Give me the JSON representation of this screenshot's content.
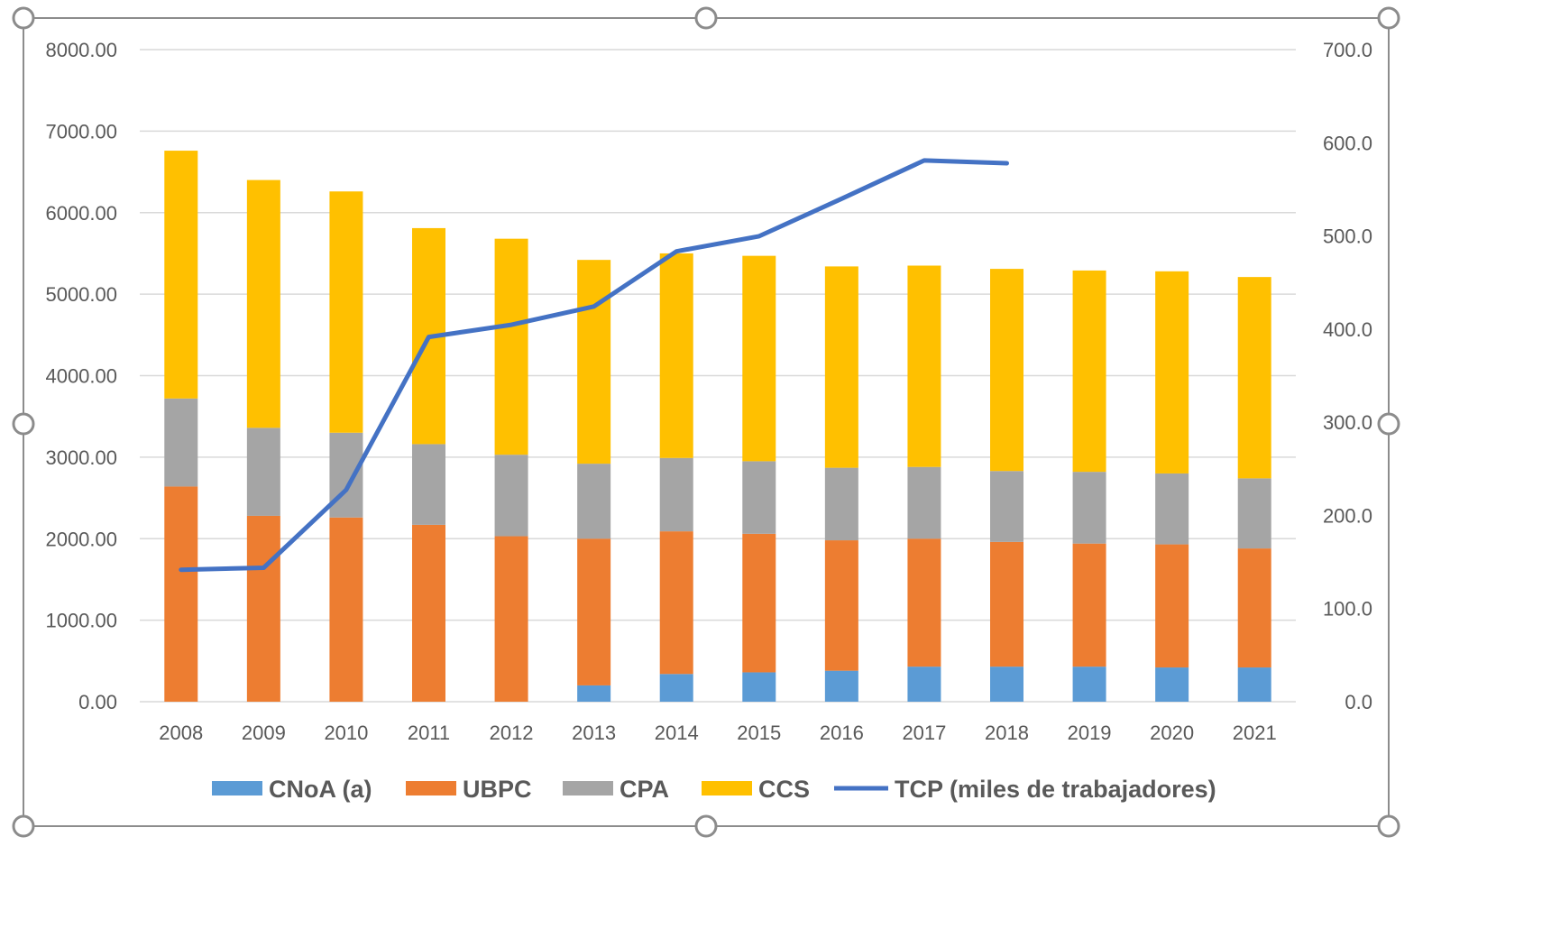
{
  "colors": {
    "CNoA": "#5B9BD5",
    "UBPC": "#ED7D31",
    "CPA": "#A5A5A5",
    "CCS": "#FFC000",
    "TCP": "#4472C4",
    "grid": "#D9D9D9",
    "axis_text": "#595959",
    "frame": "#8C8C8C"
  },
  "chart_data": {
    "type": "bar",
    "stacked": true,
    "categories": [
      "2008",
      "2009",
      "2010",
      "2011",
      "2012",
      "2013",
      "2014",
      "2015",
      "2016",
      "2017",
      "2018",
      "2019",
      "2020",
      "2021"
    ],
    "series": [
      {
        "name": "CNoA (a)",
        "type": "bar",
        "axis": "left",
        "values": [
          0,
          0,
          0,
          0,
          0,
          200,
          340,
          360,
          380,
          430,
          430,
          430,
          420,
          420
        ]
      },
      {
        "name": "UBPC",
        "type": "bar",
        "axis": "left",
        "values": [
          2640,
          2280,
          2260,
          2170,
          2030,
          1800,
          1750,
          1700,
          1600,
          1570,
          1530,
          1510,
          1510,
          1460
        ]
      },
      {
        "name": "CPA",
        "type": "bar",
        "axis": "left",
        "values": [
          1080,
          1080,
          1040,
          990,
          1000,
          920,
          900,
          890,
          890,
          880,
          870,
          880,
          870,
          860
        ]
      },
      {
        "name": "CCS",
        "type": "bar",
        "axis": "left",
        "values": [
          3040,
          3040,
          2960,
          2650,
          2650,
          2500,
          2510,
          2520,
          2470,
          2470,
          2480,
          2470,
          2480,
          2470
        ]
      },
      {
        "name": "TCP (miles de trabajadores)",
        "type": "line",
        "axis": "right",
        "values": [
          141.6,
          143.8,
          227.4,
          391.5,
          404.6,
          424.3,
          483.4,
          499.7,
          540.0,
          581.0,
          578.0,
          null,
          null,
          null
        ]
      }
    ],
    "y_left": {
      "ylim": [
        0,
        8000
      ],
      "ticks": [
        "0.00",
        "1000.00",
        "2000.00",
        "3000.00",
        "4000.00",
        "5000.00",
        "6000.00",
        "7000.00",
        "8000.00"
      ]
    },
    "y_right": {
      "ylim": [
        0,
        700
      ],
      "ticks": [
        "0.0",
        "100.0",
        "200.0",
        "300.0",
        "400.0",
        "500.0",
        "600.0",
        "700.0"
      ]
    },
    "grid": true,
    "legend_position": "bottom",
    "title": "",
    "xlabel": "",
    "ylabel": ""
  }
}
